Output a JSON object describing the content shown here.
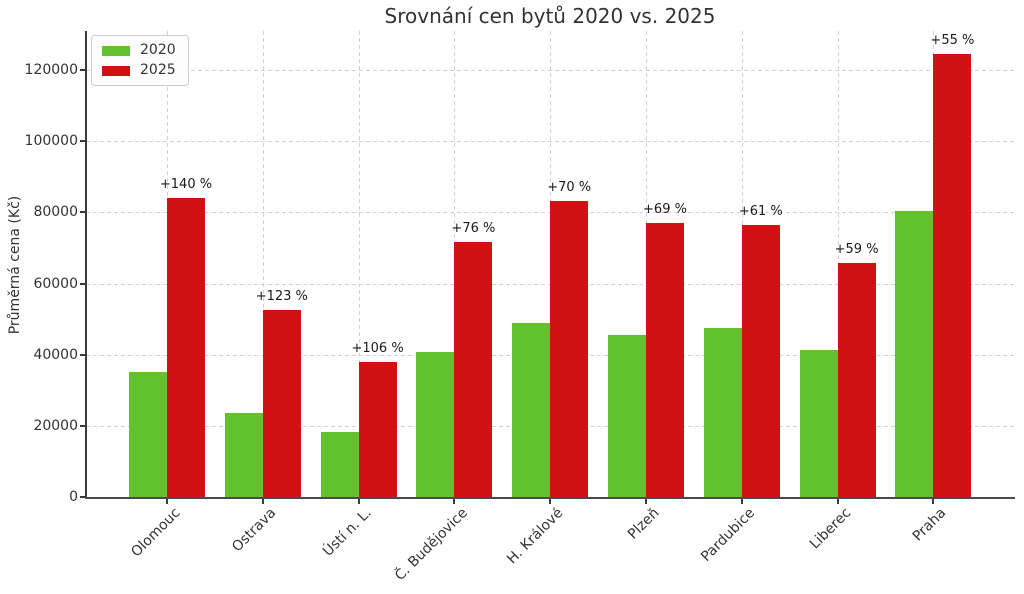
{
  "chart_data": {
    "type": "bar",
    "title": "Srovnání cen bytů 2020 vs. 2025",
    "ylabel": "Průměrná cena (Kč)",
    "xlabel": "",
    "categories": [
      "Olomouc",
      "Ostrava",
      "Ústí n. L.",
      "Č. Budějovice",
      "H. Králové",
      "Plzeň",
      "Pardubice",
      "Liberec",
      "Praha"
    ],
    "series": [
      {
        "name": "2020",
        "color": "#62c22e",
        "values": [
          35000,
          23600,
          18400,
          40700,
          49000,
          45600,
          47600,
          41300,
          80300
        ]
      },
      {
        "name": "2025",
        "color": "#d11212",
        "values": [
          84000,
          52600,
          37900,
          71600,
          83300,
          77100,
          76600,
          65700,
          124500
        ]
      }
    ],
    "bar_annotations": [
      "+140 %",
      "+123 %",
      "+106 %",
      "+76 %",
      "+70 %",
      "+69 %",
      "+61 %",
      "+59 %",
      "+55 %"
    ],
    "yticks": [
      0,
      20000,
      40000,
      60000,
      80000,
      100000,
      120000
    ],
    "ylim": [
      0,
      131000
    ],
    "grid": "dashed horizontal and vertical",
    "legend_position": "upper left",
    "colors": {
      "grid": "#d2d2d2",
      "axis": "#3a3a3a",
      "text": "#333333"
    }
  }
}
